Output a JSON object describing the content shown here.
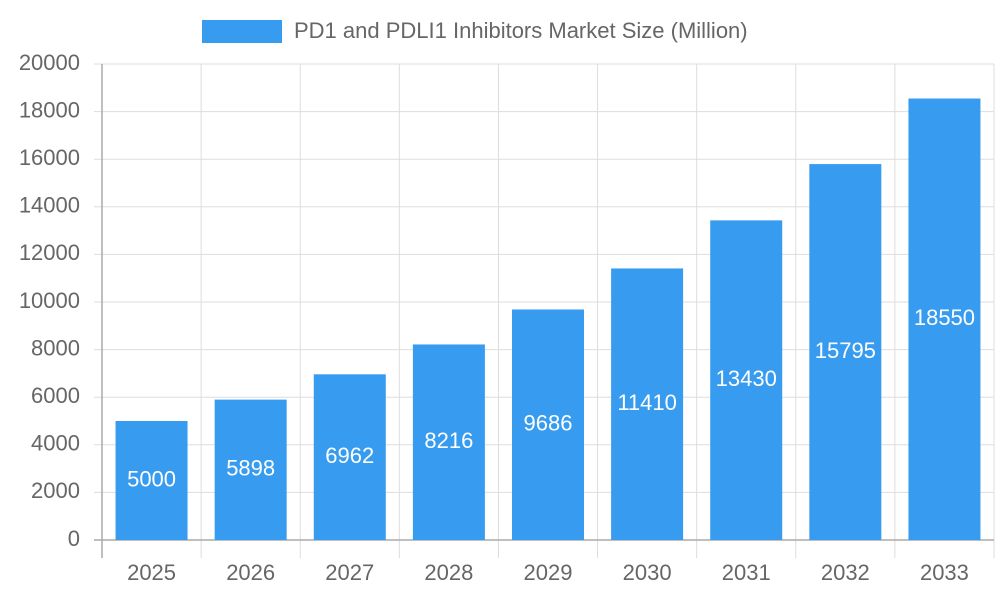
{
  "chart_data": {
    "type": "bar",
    "categories": [
      "2025",
      "2026",
      "2027",
      "2028",
      "2029",
      "2030",
      "2031",
      "2032",
      "2033"
    ],
    "series": [
      {
        "name": "PD1 and PDLI1 Inhibitors Market Size (Million)",
        "color": "#379cf0",
        "values": [
          5000,
          5898,
          6962,
          8216,
          9686,
          11410,
          13430,
          15795,
          18550
        ]
      }
    ],
    "ylim": [
      0,
      20000
    ],
    "yticks": [
      0,
      2000,
      4000,
      6000,
      8000,
      10000,
      12000,
      14000,
      16000,
      18000,
      20000
    ],
    "grid": true,
    "legend": "top",
    "data_labels": true
  }
}
